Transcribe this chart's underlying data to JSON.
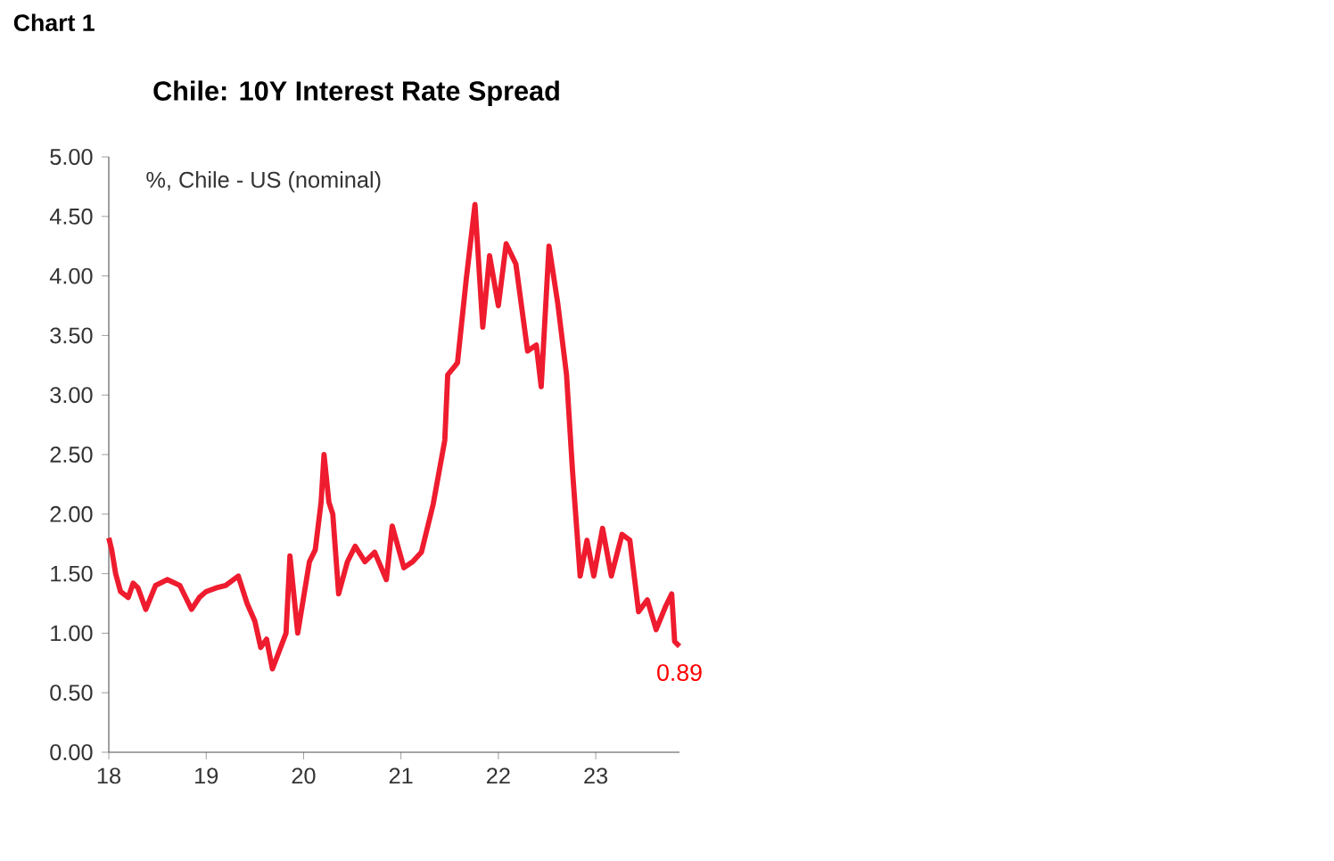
{
  "chart_data": {
    "type": "line",
    "title": "Chile: 10Y Interest Rate Spread",
    "ylabel": "%, Chile - US (nominal)",
    "annotations": [
      "Chart 1",
      {
        "text": "0.89",
        "x": 23.86,
        "y": 0.89
      }
    ],
    "xlim": [
      18,
      23.86
    ],
    "ylim": [
      0,
      5
    ],
    "xticks": [
      18,
      19,
      20,
      21,
      22,
      23
    ],
    "yticks": [
      {
        "value": 0,
        "label": "0.00"
      },
      {
        "value": 0.5,
        "label": "0.50"
      },
      {
        "value": 1,
        "label": "1.00"
      },
      {
        "value": 1.5,
        "label": "1.50"
      },
      {
        "value": 2,
        "label": "2.00"
      },
      {
        "value": 2.5,
        "label": "2.50"
      },
      {
        "value": 3,
        "label": "3.00"
      },
      {
        "value": 3.5,
        "label": "3.50"
      },
      {
        "value": 4,
        "label": "4.00"
      },
      {
        "value": 4.5,
        "label": "4.50"
      },
      {
        "value": 5,
        "label": "5.00"
      }
    ],
    "grid": false,
    "series": [
      {
        "color": "#ee1c2e",
        "x": [
          18.0,
          18.03,
          18.07,
          18.12,
          18.2,
          18.25,
          18.3,
          18.38,
          18.48,
          18.6,
          18.73,
          18.85,
          18.93,
          19.0,
          19.1,
          19.2,
          19.33,
          19.42,
          19.5,
          19.56,
          19.62,
          19.68,
          19.75,
          19.82,
          19.86,
          19.94,
          20.0,
          20.06,
          20.12,
          20.18,
          20.21,
          20.26,
          20.3,
          20.36,
          20.45,
          20.53,
          20.63,
          20.73,
          20.85,
          20.91,
          21.03,
          21.12,
          21.21,
          21.33,
          21.45,
          21.48,
          21.58,
          21.67,
          21.76,
          21.84,
          21.91,
          22.0,
          22.08,
          22.18,
          22.3,
          22.39,
          22.44,
          22.52,
          22.61,
          22.7,
          22.76,
          22.84,
          22.91,
          22.98,
          23.07,
          23.16,
          23.27,
          23.35,
          23.44,
          23.53,
          23.62,
          23.72,
          23.78,
          23.81,
          23.86
        ],
        "values": [
          1.8,
          1.7,
          1.5,
          1.35,
          1.3,
          1.42,
          1.38,
          1.2,
          1.4,
          1.45,
          1.4,
          1.2,
          1.3,
          1.35,
          1.38,
          1.4,
          1.48,
          1.25,
          1.1,
          0.88,
          0.95,
          0.7,
          0.85,
          1.0,
          1.65,
          1.0,
          1.3,
          1.6,
          1.7,
          2.1,
          2.5,
          2.1,
          2.0,
          1.33,
          1.6,
          1.73,
          1.6,
          1.68,
          1.45,
          1.9,
          1.55,
          1.6,
          1.68,
          2.08,
          2.62,
          3.17,
          3.27,
          3.97,
          4.6,
          3.57,
          4.17,
          3.75,
          4.27,
          4.1,
          3.37,
          3.42,
          3.07,
          4.25,
          3.77,
          3.17,
          2.38,
          1.48,
          1.78,
          1.48,
          1.88,
          1.48,
          1.83,
          1.78,
          1.18,
          1.28,
          1.03,
          1.23,
          1.33,
          0.93,
          0.89
        ]
      }
    ]
  }
}
